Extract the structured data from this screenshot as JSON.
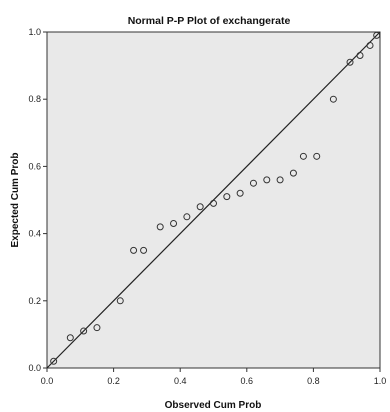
{
  "chart_data": {
    "type": "scatter",
    "title": "Normal P-P Plot of exchangerate",
    "xlabel": "Observed Cum Prob",
    "ylabel": "Expected Cum Prob",
    "xlim": [
      0.0,
      1.0
    ],
    "ylim": [
      0.0,
      1.0
    ],
    "x_ticks": [
      "0.0",
      "0.2",
      "0.4",
      "0.6",
      "0.8",
      "1.0"
    ],
    "y_ticks": [
      "0.0",
      "0.2",
      "0.4",
      "0.6",
      "0.8",
      "1.0"
    ],
    "grid": false,
    "reference_line": {
      "from": [
        0,
        0
      ],
      "to": [
        1,
        1
      ]
    },
    "colors": {
      "plot_background": "#e9e9e9",
      "marker": "#333333",
      "line": "#222222"
    },
    "points": [
      {
        "x": 0.02,
        "y": 0.02
      },
      {
        "x": 0.07,
        "y": 0.09
      },
      {
        "x": 0.11,
        "y": 0.11
      },
      {
        "x": 0.15,
        "y": 0.12
      },
      {
        "x": 0.22,
        "y": 0.2
      },
      {
        "x": 0.26,
        "y": 0.35
      },
      {
        "x": 0.29,
        "y": 0.35
      },
      {
        "x": 0.34,
        "y": 0.42
      },
      {
        "x": 0.38,
        "y": 0.43
      },
      {
        "x": 0.42,
        "y": 0.45
      },
      {
        "x": 0.46,
        "y": 0.48
      },
      {
        "x": 0.5,
        "y": 0.49
      },
      {
        "x": 0.54,
        "y": 0.51
      },
      {
        "x": 0.58,
        "y": 0.52
      },
      {
        "x": 0.62,
        "y": 0.55
      },
      {
        "x": 0.66,
        "y": 0.56
      },
      {
        "x": 0.7,
        "y": 0.56
      },
      {
        "x": 0.74,
        "y": 0.58
      },
      {
        "x": 0.77,
        "y": 0.63
      },
      {
        "x": 0.81,
        "y": 0.63
      },
      {
        "x": 0.86,
        "y": 0.8
      },
      {
        "x": 0.91,
        "y": 0.91
      },
      {
        "x": 0.94,
        "y": 0.93
      },
      {
        "x": 0.97,
        "y": 0.96
      },
      {
        "x": 0.99,
        "y": 0.99
      }
    ]
  }
}
